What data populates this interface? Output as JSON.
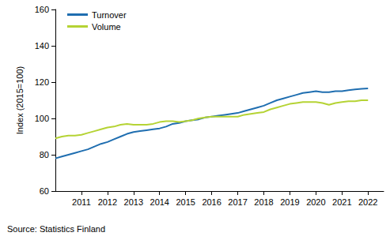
{
  "chart_data": {
    "type": "line",
    "y_label": "Index (2015=100)",
    "caption": "Source: Statistics Finland",
    "x": [
      2010,
      2010.25,
      2010.5,
      2010.75,
      2011,
      2011.25,
      2011.5,
      2011.75,
      2012,
      2012.25,
      2012.5,
      2012.75,
      2013,
      2013.25,
      2013.5,
      2013.75,
      2014,
      2014.25,
      2014.5,
      2014.75,
      2015,
      2015.25,
      2015.5,
      2015.75,
      2016,
      2016.25,
      2016.5,
      2016.75,
      2017,
      2017.25,
      2017.5,
      2017.75,
      2018,
      2018.25,
      2018.5,
      2018.75,
      2019,
      2019.25,
      2019.5,
      2019.75,
      2020,
      2020.25,
      2020.5,
      2020.75,
      2021,
      2021.25,
      2021.5,
      2021.75,
      2022
    ],
    "series": [
      {
        "name": "Turnover",
        "color": "#1f6eb0",
        "values": [
          78,
          79,
          80,
          81,
          82,
          83,
          84.5,
          86,
          87,
          88.5,
          90,
          91.5,
          92.5,
          93,
          93.5,
          94,
          94.5,
          95.5,
          97,
          97.5,
          98.5,
          99,
          99.5,
          100.5,
          101,
          101.5,
          102,
          102.5,
          103,
          104,
          105,
          106,
          107,
          108.5,
          110,
          111,
          112,
          113,
          114,
          114.5,
          115,
          114.5,
          114.5,
          115,
          115,
          115.5,
          116,
          116.3,
          116.5
        ]
      },
      {
        "name": "Volume",
        "color": "#b5d334",
        "values": [
          89,
          90,
          90.5,
          90.5,
          91,
          92,
          93,
          94,
          95,
          95.5,
          96.5,
          97,
          96.5,
          96.5,
          96.5,
          97,
          98,
          98.5,
          98.5,
          98,
          98.5,
          99,
          100,
          100.5,
          101,
          101,
          101,
          101,
          101,
          102,
          102.5,
          103,
          103.5,
          105,
          106,
          107,
          108,
          108.5,
          109,
          109,
          109,
          108.5,
          107.5,
          108.5,
          109,
          109.5,
          109.5,
          110,
          110
        ]
      }
    ],
    "xlim": [
      2010,
      2022.6
    ],
    "xticks": [
      2011,
      2012,
      2013,
      2014,
      2015,
      2016,
      2017,
      2018,
      2019,
      2020,
      2021,
      2022
    ],
    "ylim": [
      60,
      160
    ],
    "yticks": [
      60,
      80,
      100,
      120,
      140,
      160
    ],
    "grid": false,
    "legend": "upper left"
  }
}
